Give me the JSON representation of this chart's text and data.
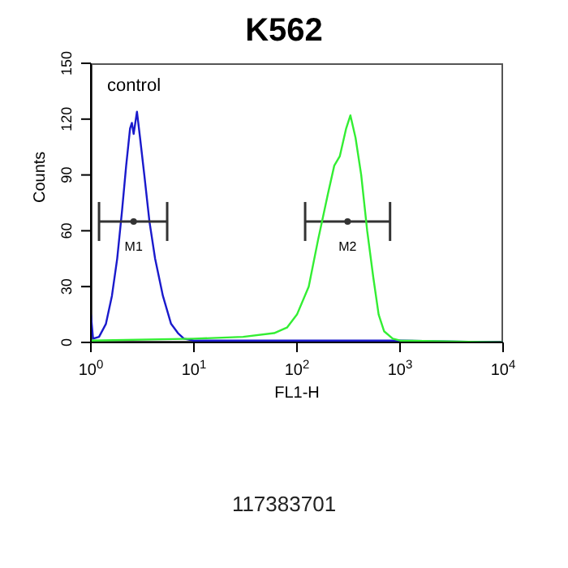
{
  "chart_data": {
    "type": "line",
    "title": "K562",
    "xlabel": "FL1-H",
    "ylabel": "Counts",
    "log": "x",
    "xlim": [
      1,
      10000
    ],
    "xticks": [
      {
        "value": 1,
        "label": "10$^{0}$"
      },
      {
        "value": 10,
        "label": "10$^{1}$"
      },
      {
        "value": 100,
        "label": "10$^{2}$"
      },
      {
        "value": 1000,
        "label": "10$^{3}$"
      },
      {
        "value": 10000,
        "label": "10$^{4}$"
      }
    ],
    "ylim": [
      0,
      150
    ],
    "yticks": [
      0,
      30,
      60,
      90,
      120,
      150
    ],
    "grid": false,
    "legend": false,
    "marker": "none",
    "line_style": "solid",
    "series": [
      {
        "name": "control",
        "color": "#1a1acc",
        "x": [
          1,
          1.05,
          1.2,
          1.4,
          1.6,
          1.8,
          2.0,
          2.2,
          2.4,
          2.5,
          2.6,
          2.8,
          3.0,
          3.3,
          3.7,
          4.2,
          5,
          6,
          7,
          8,
          10,
          20,
          100,
          1000,
          10000
        ],
        "values": [
          15,
          2,
          3,
          10,
          25,
          45,
          70,
          95,
          115,
          118,
          112,
          124,
          110,
          90,
          65,
          45,
          25,
          10,
          5,
          2,
          1,
          1,
          1,
          1,
          0
        ]
      },
      {
        "type": "scatter",
        "marker": "circle",
        "color": "#333333",
        "x": [
          2.6,
          310
        ],
        "values": [
          65,
          65
        ],
        "xerrors": [
          [
            1.2,
            5.5
          ],
          [
            120,
            800
          ]
        ],
        "value_labels": [
          "M1",
          "M2"
        ]
      },
      {
        "color": "#33ee33",
        "x": [
          1,
          10,
          30,
          60,
          80,
          100,
          130,
          160,
          200,
          230,
          260,
          300,
          330,
          370,
          420,
          480,
          550,
          620,
          700,
          850,
          1000,
          10000
        ],
        "values": [
          1,
          2,
          3,
          5,
          8,
          15,
          30,
          55,
          80,
          95,
          100,
          115,
          122,
          110,
          90,
          60,
          35,
          15,
          6,
          2,
          1,
          0
        ]
      }
    ],
    "annotations": [
      "117383701"
    ]
  }
}
